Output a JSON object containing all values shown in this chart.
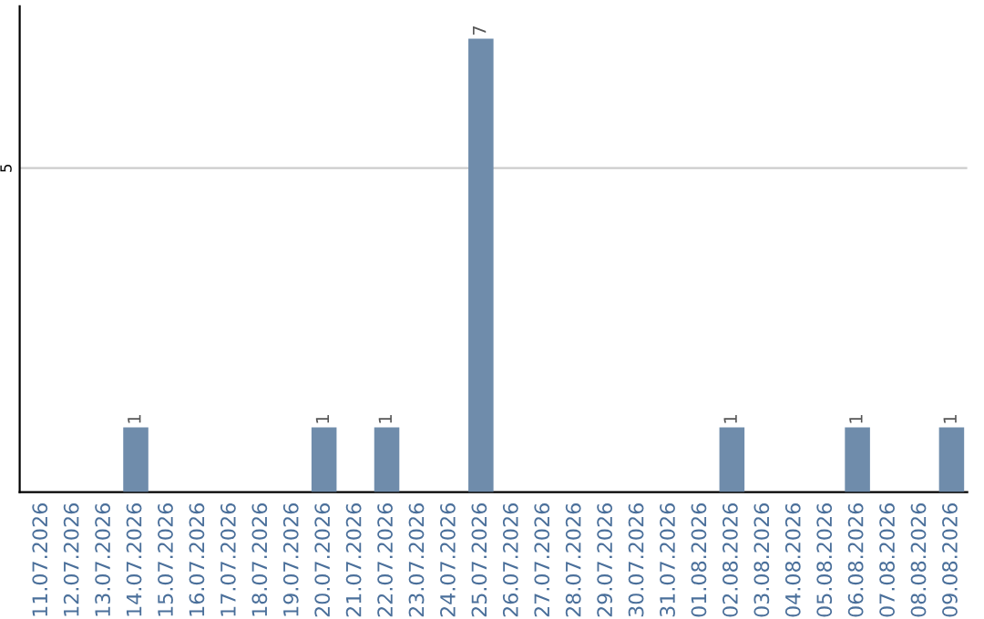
{
  "chart_data": {
    "type": "bar",
    "categories": [
      "11.07.2026",
      "12.07.2026",
      "13.07.2026",
      "14.07.2026",
      "15.07.2026",
      "16.07.2026",
      "17.07.2026",
      "18.07.2026",
      "19.07.2026",
      "20.07.2026",
      "21.07.2026",
      "22.07.2026",
      "23.07.2026",
      "24.07.2026",
      "25.07.2026",
      "26.07.2026",
      "27.07.2026",
      "28.07.2026",
      "29.07.2026",
      "30.07.2026",
      "31.07.2026",
      "01.08.2026",
      "02.08.2026",
      "03.08.2026",
      "04.08.2026",
      "05.08.2026",
      "06.08.2026",
      "07.08.2026",
      "08.08.2026",
      "09.08.2026"
    ],
    "values": [
      0,
      0,
      0,
      1,
      0,
      0,
      0,
      0,
      0,
      1,
      0,
      1,
      0,
      0,
      7,
      0,
      0,
      0,
      0,
      0,
      0,
      0,
      1,
      0,
      0,
      0,
      1,
      0,
      0,
      1
    ],
    "value_labels": [
      null,
      null,
      null,
      "1",
      null,
      null,
      null,
      null,
      null,
      "1",
      null,
      "1",
      null,
      null,
      "7",
      null,
      null,
      null,
      null,
      null,
      null,
      null,
      "1",
      null,
      null,
      null,
      "1",
      null,
      null,
      "1"
    ],
    "color": "#6f8cab",
    "ylim": [
      0,
      7.5
    ],
    "yticks": [
      5
    ],
    "grid": "y",
    "legend": false
  }
}
